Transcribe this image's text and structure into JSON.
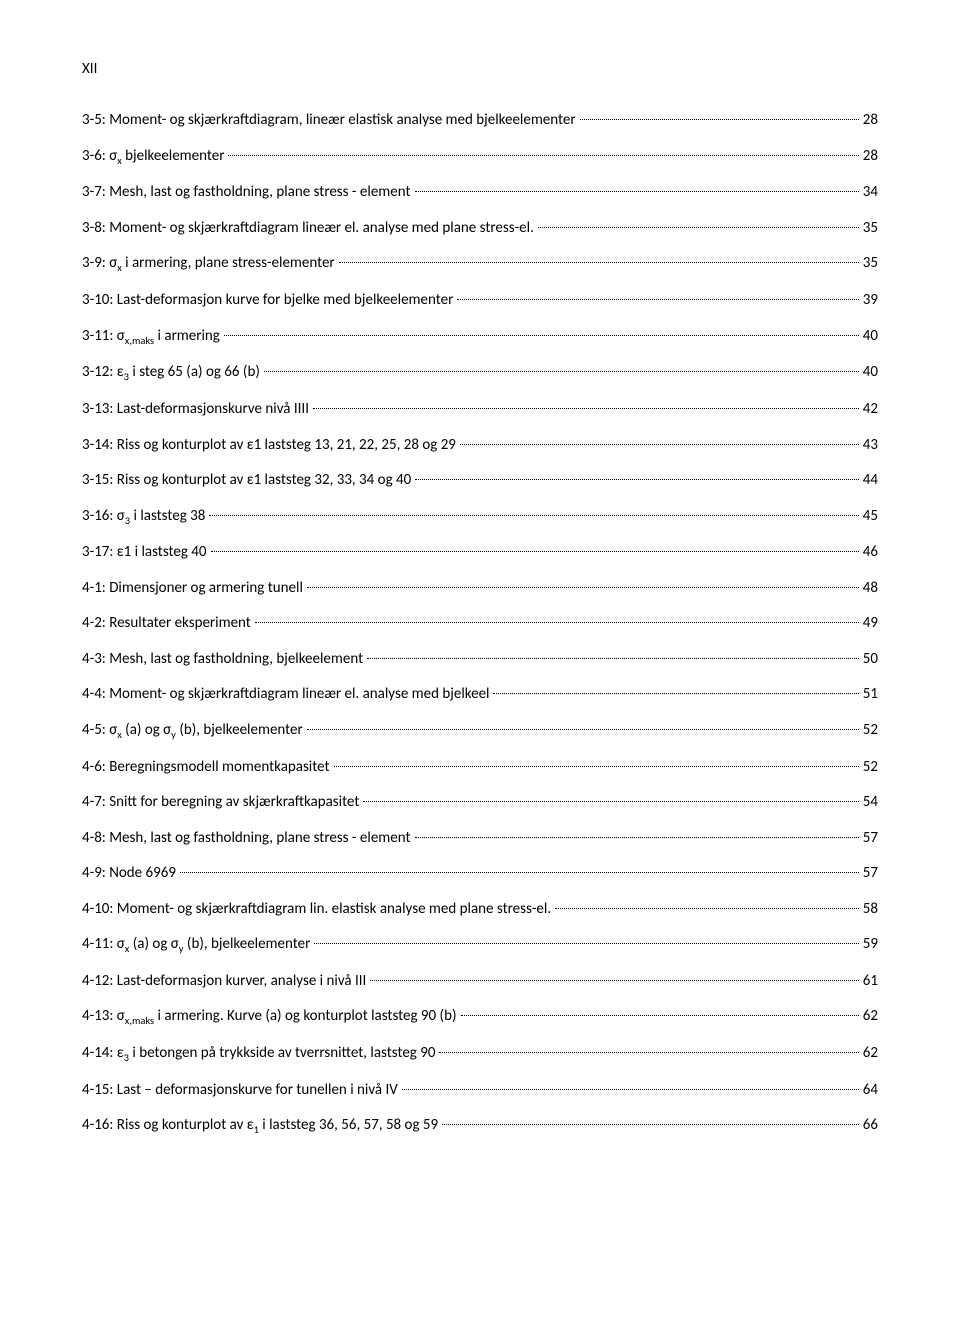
{
  "roman": "XII",
  "entries": [
    {
      "label": "3-5: Moment- og skjærkraftdiagram, lineær elastisk analyse med bjelkeelementer",
      "page": "28"
    },
    {
      "label": "3-6: σ<sub>x</sub> bjelkeelementer",
      "page": "28"
    },
    {
      "label": "3-7: Mesh, last og fastholdning, plane stress - element",
      "page": "34"
    },
    {
      "label": "3-8: Moment- og skjærkraftdiagram lineær el. analyse med plane stress-el.",
      "page": "35"
    },
    {
      "label": "3-9: σ<sub>x</sub> i armering, plane stress-elementer",
      "page": "35"
    },
    {
      "label": "3-10: Last-deformasjon kurve for bjelke med bjelkeelementer",
      "page": "39"
    },
    {
      "label": "3-11: σ<sub>x,maks</sub> i armering",
      "page": "40"
    },
    {
      "label": "3-12: ε<sub>3</sub> i steg 65 (a) og 66 (b)",
      "page": "40"
    },
    {
      "label": "3-13: Last-deformasjonskurve nivå IIII",
      "page": "42"
    },
    {
      "label": "3-14: Riss og konturplot av ε1 laststeg 13, 21, 22, 25, 28 og 29",
      "page": "43"
    },
    {
      "label": "3-15: Riss og konturplot av ε1 laststeg 32, 33, 34 og 40",
      "page": "44"
    },
    {
      "label": "3-16: σ<sub>3</sub> i laststeg 38",
      "page": "45"
    },
    {
      "label": "3-17: ε1 i laststeg 40",
      "page": "46"
    },
    {
      "label": "4-1: Dimensjoner og armering tunell",
      "page": "48"
    },
    {
      "label": "4-2: Resultater eksperiment",
      "page": "49"
    },
    {
      "label": "4-3: Mesh, last og fastholdning, bjelkeelement",
      "page": "50"
    },
    {
      "label": "4-4: Moment- og skjærkraftdiagram lineær el. analyse med bjelkeel",
      "page": "51"
    },
    {
      "label": "4-5: σ<sub>x</sub> (a) og σ<sub>y</sub> (b), bjelkeelementer",
      "page": "52"
    },
    {
      "label": "4-6: Beregningsmodell momentkapasitet",
      "page": "52"
    },
    {
      "label": "4-7: Snitt for beregning av skjærkraftkapasitet",
      "page": "54"
    },
    {
      "label": "4-8: Mesh, last og fastholdning, plane stress - element",
      "page": "57"
    },
    {
      "label": "4-9: Node 6969",
      "page": "57"
    },
    {
      "label": "4-10: Moment- og skjærkraftdiagram lin. elastisk analyse med plane stress-el.",
      "page": "58"
    },
    {
      "label": "4-11: σ<sub>x</sub> (a) og σ<sub>y</sub> (b), bjelkeelementer",
      "page": "59"
    },
    {
      "label": "4-12: Last-deformasjon kurver, analyse i nivå III",
      "page": "61"
    },
    {
      "label": "4-13: σ<sub>x,maks</sub> i armering. Kurve (a) og konturplot laststeg 90 (b)",
      "page": "62"
    },
    {
      "label": "4-14: ε<sub>3</sub> i betongen på trykkside av tverrsnittet, laststeg 90",
      "page": "62"
    },
    {
      "label": "4-15: Last – deformasjonskurve for tunellen i nivå IV",
      "page": "64"
    },
    {
      "label": "4-16: Riss og konturplot av ε<sub>1</sub> i laststeg 36, 56, 57, 58 og 59",
      "page": "66"
    }
  ],
  "style": {
    "font_family": "Calibri, Arial, sans-serif",
    "background": "#ffffff",
    "text_color": "#000000",
    "leader_color": "#000000",
    "font_size_pt": 11,
    "line_spacing": 1.5
  }
}
